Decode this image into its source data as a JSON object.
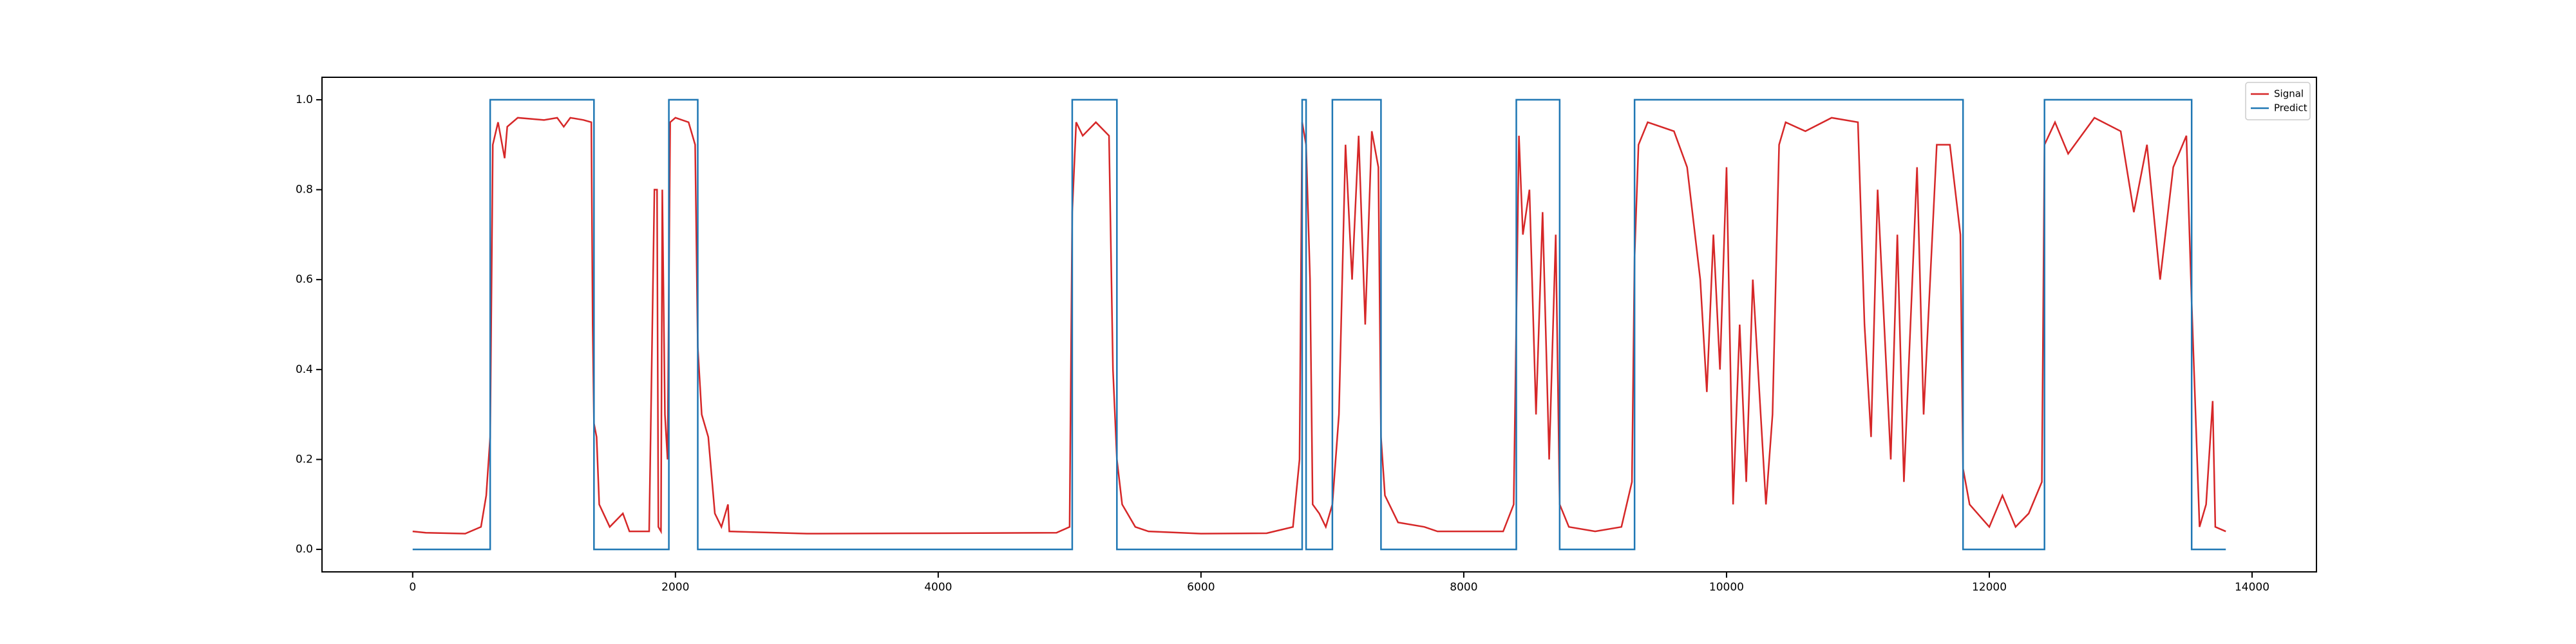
{
  "chart_data": {
    "type": "line",
    "xlim": [
      -690,
      14490
    ],
    "xticks": [
      0,
      2000,
      4000,
      6000,
      8000,
      10000,
      12000,
      14000
    ],
    "ylim": [
      -0.05,
      1.05
    ],
    "yticks": [
      {
        "value": 0,
        "label": "0.0"
      },
      {
        "value": 0.2,
        "label": "0.2"
      },
      {
        "value": 0.4,
        "label": "0.4"
      },
      {
        "value": 0.6,
        "label": "0.6"
      },
      {
        "value": 0.8,
        "label": "0.8"
      },
      {
        "value": 1,
        "label": "1.0"
      }
    ],
    "legend": "upper right",
    "series": [
      {
        "name": "Signal",
        "color": "#d62728",
        "x": [
          0,
          100,
          400,
          520,
          560,
          590,
          610,
          650,
          700,
          720,
          800,
          1000,
          1100,
          1150,
          1200,
          1300,
          1360,
          1370,
          1380,
          1400,
          1420,
          1500,
          1600,
          1650,
          1800,
          1840,
          1860,
          1870,
          1890,
          1900,
          1920,
          1940,
          1960,
          2000,
          2100,
          2150,
          2170,
          2200,
          2250,
          2300,
          2350,
          2400,
          2410,
          3000,
          4000,
          4900,
          5000,
          5020,
          5050,
          5100,
          5200,
          5300,
          5330,
          5360,
          5400,
          5500,
          5600,
          6000,
          6500,
          6700,
          6750,
          6770,
          6800,
          6830,
          6850,
          6900,
          6950,
          7000,
          7050,
          7100,
          7150,
          7200,
          7250,
          7300,
          7350,
          7370,
          7400,
          7500,
          7700,
          7800,
          8000,
          8300,
          8380,
          8420,
          8450,
          8500,
          8550,
          8600,
          8650,
          8700,
          8730,
          8800,
          9000,
          9200,
          9280,
          9300,
          9330,
          9400,
          9600,
          9700,
          9800,
          9850,
          9900,
          9950,
          10000,
          10050,
          10100,
          10150,
          10200,
          10300,
          10350,
          10400,
          10450,
          10600,
          10800,
          11000,
          11050,
          11100,
          11150,
          11250,
          11300,
          11350,
          11450,
          11500,
          11600,
          11700,
          11780,
          11800,
          11850,
          12000,
          12100,
          12200,
          12300,
          12400,
          12420,
          12500,
          12600,
          12800,
          13000,
          13100,
          13200,
          13300,
          13400,
          13500,
          13540,
          13570,
          13600,
          13650,
          13700,
          13720,
          13800
        ],
        "values": [
          0.04,
          0.037,
          0.035,
          0.05,
          0.12,
          0.25,
          0.9,
          0.95,
          0.87,
          0.94,
          0.96,
          0.955,
          0.96,
          0.94,
          0.96,
          0.955,
          0.95,
          0.5,
          0.28,
          0.25,
          0.1,
          0.05,
          0.08,
          0.04,
          0.04,
          0.8,
          0.8,
          0.05,
          0.04,
          0.8,
          0.3,
          0.2,
          0.95,
          0.96,
          0.95,
          0.9,
          0.45,
          0.3,
          0.25,
          0.08,
          0.05,
          0.1,
          0.04,
          0.035,
          0.036,
          0.037,
          0.05,
          0.75,
          0.95,
          0.92,
          0.95,
          0.92,
          0.4,
          0.2,
          0.1,
          0.05,
          0.04,
          0.035,
          0.036,
          0.05,
          0.2,
          0.95,
          0.9,
          0.6,
          0.1,
          0.08,
          0.05,
          0.1,
          0.3,
          0.9,
          0.6,
          0.92,
          0.5,
          0.93,
          0.85,
          0.25,
          0.12,
          0.06,
          0.05,
          0.04,
          0.04,
          0.04,
          0.1,
          0.92,
          0.7,
          0.8,
          0.3,
          0.75,
          0.2,
          0.7,
          0.1,
          0.05,
          0.04,
          0.05,
          0.15,
          0.65,
          0.9,
          0.95,
          0.93,
          0.85,
          0.6,
          0.35,
          0.7,
          0.4,
          0.85,
          0.1,
          0.5,
          0.15,
          0.6,
          0.1,
          0.3,
          0.9,
          0.95,
          0.93,
          0.96,
          0.95,
          0.5,
          0.25,
          0.8,
          0.2,
          0.7,
          0.15,
          0.85,
          0.3,
          0.9,
          0.9,
          0.7,
          0.18,
          0.1,
          0.05,
          0.12,
          0.05,
          0.08,
          0.15,
          0.9,
          0.95,
          0.88,
          0.96,
          0.93,
          0.75,
          0.9,
          0.6,
          0.85,
          0.92,
          0.55,
          0.3,
          0.05,
          0.1,
          0.33,
          0.05,
          0.04
        ]
      },
      {
        "name": "Predict",
        "color": "#1f77b4",
        "x": [
          0,
          590,
          590,
          1380,
          1380,
          1950,
          1950,
          2170,
          2170,
          5020,
          5020,
          5360,
          5360,
          6770,
          6770,
          6800,
          6800,
          7000,
          7000,
          7370,
          7370,
          8400,
          8400,
          8730,
          8730,
          9300,
          9300,
          11800,
          11800,
          12420,
          12420,
          13540,
          13540,
          13560,
          13560,
          13800
        ],
        "values": [
          0,
          0,
          1,
          1,
          0,
          0,
          1,
          1,
          0,
          0,
          1,
          1,
          0,
          0,
          1,
          1,
          0,
          0,
          1,
          1,
          0,
          0,
          1,
          1,
          0,
          0,
          1,
          1,
          0,
          0,
          1,
          1,
          0,
          0,
          0,
          0
        ]
      }
    ]
  }
}
